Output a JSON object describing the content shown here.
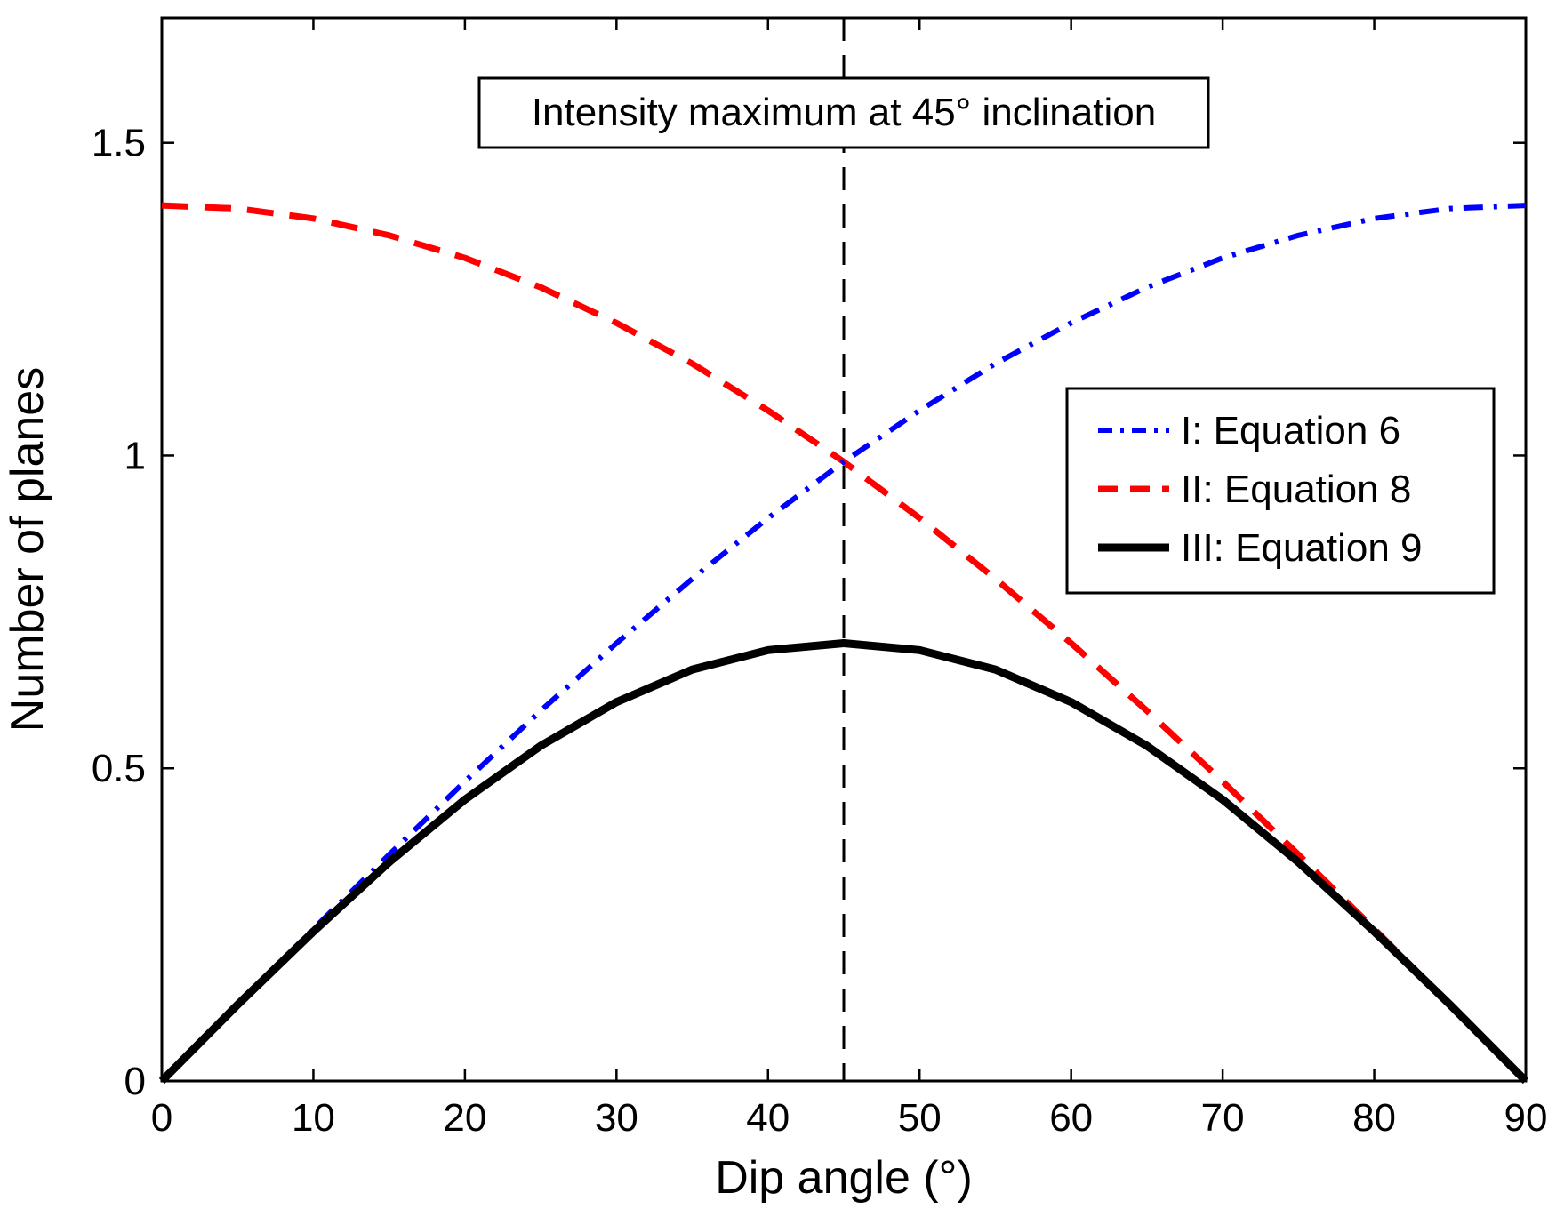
{
  "chart_data": {
    "type": "line",
    "title": "",
    "xlabel": "Dip angle (°)",
    "ylabel": "Number of planes",
    "xlim": [
      0,
      90
    ],
    "ylim": [
      0,
      1.7
    ],
    "xticks": [
      0,
      10,
      20,
      30,
      40,
      50,
      60,
      70,
      80,
      90
    ],
    "xtick_labels": [
      "0",
      "10",
      "20",
      "30",
      "40",
      "50",
      "60",
      "70",
      "80",
      "90"
    ],
    "yticks": [
      0,
      0.5,
      1,
      1.5
    ],
    "ytick_labels": [
      "0",
      "0.5",
      "1",
      "1.5"
    ],
    "grid": false,
    "legend_position": "right",
    "annotation": {
      "text": "Intensity maximum at 45° inclination",
      "x": 45
    },
    "vline": {
      "x": 45,
      "style": "dashed",
      "color": "#000000"
    },
    "x": [
      0,
      5,
      10,
      15,
      20,
      25,
      30,
      35,
      40,
      45,
      50,
      55,
      60,
      65,
      70,
      75,
      80,
      85,
      90
    ],
    "series": [
      {
        "name": "I: Equation 6",
        "style": "dashdot",
        "color": "#0000ff",
        "values": [
          0,
          0.122,
          0.243,
          0.362,
          0.479,
          0.592,
          0.7,
          0.803,
          0.9,
          0.99,
          1.072,
          1.147,
          1.212,
          1.269,
          1.316,
          1.352,
          1.379,
          1.395,
          1.4
        ]
      },
      {
        "name": "II: Equation 8",
        "style": "dashed",
        "color": "#ff0000",
        "values": [
          1.4,
          1.395,
          1.379,
          1.352,
          1.316,
          1.269,
          1.212,
          1.147,
          1.072,
          0.99,
          0.9,
          0.803,
          0.7,
          0.592,
          0.479,
          0.362,
          0.243,
          0.122,
          0
        ]
      },
      {
        "name": "III: Equation 9",
        "style": "solid",
        "color": "#000000",
        "values": [
          0,
          0.122,
          0.239,
          0.35,
          0.45,
          0.536,
          0.606,
          0.658,
          0.689,
          0.7,
          0.689,
          0.658,
          0.606,
          0.536,
          0.45,
          0.35,
          0.239,
          0.122,
          0
        ]
      }
    ]
  }
}
